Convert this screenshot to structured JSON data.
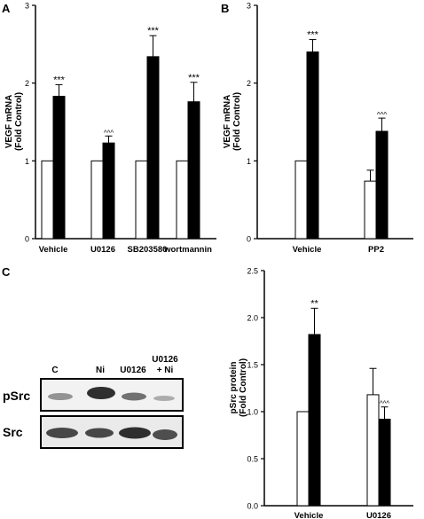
{
  "panels": {
    "a": "A",
    "b": "B",
    "c": "C"
  },
  "chart_data": [
    {
      "id": "A",
      "type": "bar",
      "ylabel_line1": "VEGF mRNA",
      "ylabel_line2": "(Fold Control)",
      "ylim": [
        0,
        3
      ],
      "yticks": [
        "0",
        "1",
        "2",
        "3"
      ],
      "categories": [
        "Vehicle",
        "U0126",
        "SB203580",
        "wortmannin"
      ],
      "series": [
        {
          "fill": "#ffffff",
          "values": [
            1.0,
            1.0,
            1.0,
            1.0
          ],
          "errors": [
            0,
            0,
            0,
            0
          ]
        },
        {
          "fill": "#000000",
          "values": [
            1.83,
            1.23,
            2.34,
            1.76
          ],
          "errors": [
            0.15,
            0.09,
            0.27,
            0.25
          ]
        }
      ],
      "annotations": [
        "***",
        "^^^",
        "***",
        "***"
      ]
    },
    {
      "id": "B",
      "type": "bar",
      "ylabel_line1": "VEGF mRNA",
      "ylabel_line2": "(Fold Control)",
      "ylim": [
        0,
        3
      ],
      "yticks": [
        "0",
        "1",
        "2",
        "3"
      ],
      "categories": [
        "Vehicle",
        "PP2"
      ],
      "series": [
        {
          "fill": "#ffffff",
          "values": [
            1.0,
            0.74
          ],
          "errors": [
            0,
            0.14
          ]
        },
        {
          "fill": "#000000",
          "values": [
            2.4,
            1.38
          ],
          "errors": [
            0.16,
            0.17
          ]
        }
      ],
      "annotations": [
        "***",
        "^^^"
      ]
    },
    {
      "id": "C",
      "type": "bar",
      "ylabel_line1": "pSrc protein",
      "ylabel_line2": "(Fold Control)",
      "ylim": [
        0,
        2.5
      ],
      "yticks": [
        "0.0",
        "0.5",
        "1.0",
        "1.5",
        "2.0",
        "2.5"
      ],
      "categories": [
        "Vehicle",
        "U0126"
      ],
      "series": [
        {
          "fill": "#ffffff",
          "values": [
            1.0,
            1.18
          ],
          "errors": [
            0,
            0.28
          ]
        },
        {
          "fill": "#000000",
          "values": [
            1.82,
            0.92
          ],
          "errors": [
            0.28,
            0.13
          ]
        }
      ],
      "annotations": [
        "**",
        "^^^"
      ]
    }
  ],
  "blot": {
    "lanes": [
      "C",
      "Ni",
      "U0126",
      "U0126"
    ],
    "lane4_line2": "+ Ni",
    "rows": [
      "pSrc",
      "Src"
    ]
  }
}
